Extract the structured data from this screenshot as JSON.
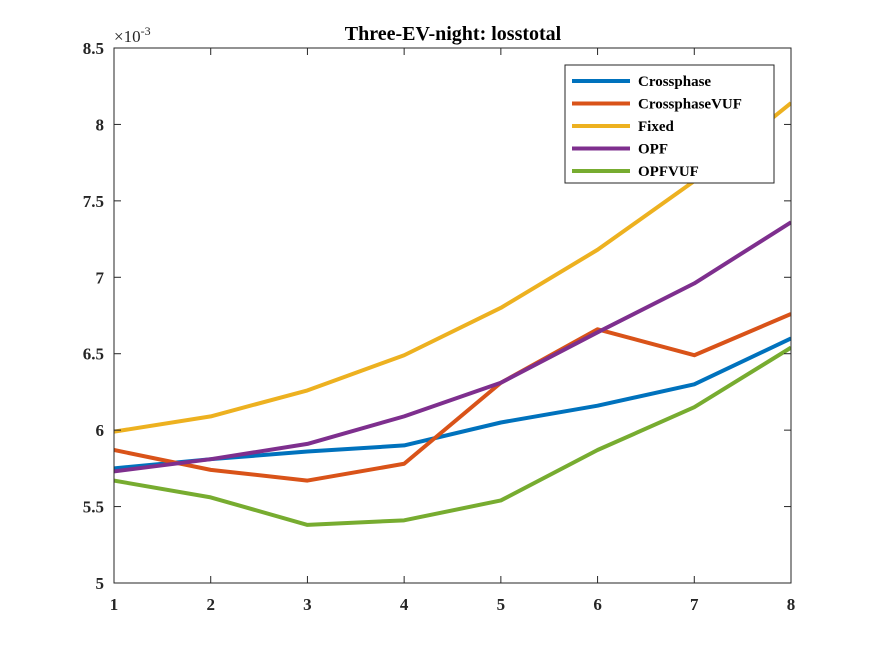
{
  "chart_data": {
    "type": "line",
    "title": "Three-EV-night: losstotal",
    "xlabel": "",
    "ylabel": "",
    "x": [
      1,
      2,
      3,
      4,
      5,
      6,
      7,
      8
    ],
    "xlim": [
      1,
      8
    ],
    "ylim": [
      5,
      8.5
    ],
    "x_ticks": [
      "1",
      "2",
      "3",
      "4",
      "5",
      "6",
      "7",
      "8"
    ],
    "y_ticks": [
      "5",
      "5.5",
      "6",
      "6.5",
      "7",
      "7.5",
      "8",
      "8.5"
    ],
    "y_tick_values": [
      5,
      5.5,
      6,
      6.5,
      7,
      7.5,
      8,
      8.5
    ],
    "y_exponent": {
      "base": "×10",
      "power": "-3"
    },
    "grid": false,
    "legend_position": "top-right",
    "series": [
      {
        "name": "Crossphase",
        "color": "#0072BD",
        "values": [
          5.75,
          5.81,
          5.86,
          5.9,
          6.05,
          6.16,
          6.3,
          6.6
        ]
      },
      {
        "name": "CrossphaseVUF",
        "color": "#D95319",
        "values": [
          5.87,
          5.74,
          5.67,
          5.78,
          6.31,
          6.66,
          6.49,
          6.76
        ]
      },
      {
        "name": "Fixed",
        "color": "#EDB120",
        "values": [
          5.99,
          6.09,
          6.26,
          6.49,
          6.8,
          7.18,
          7.63,
          8.14
        ]
      },
      {
        "name": "OPF",
        "color": "#7E2F8E",
        "values": [
          5.73,
          5.81,
          5.91,
          6.09,
          6.31,
          6.64,
          6.96,
          7.36
        ]
      },
      {
        "name": "OPFVUF",
        "color": "#77AC30",
        "values": [
          5.67,
          5.56,
          5.38,
          5.41,
          5.54,
          5.87,
          6.15,
          6.54
        ]
      }
    ]
  }
}
